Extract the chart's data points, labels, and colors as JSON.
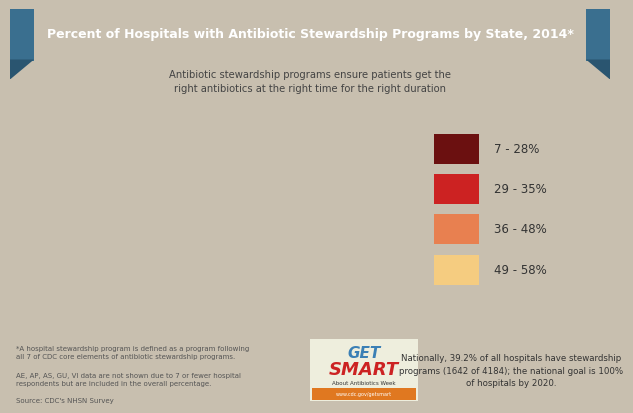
{
  "title": "Percent of Hospitals with Antibiotic Stewardship Programs by State, 2014*",
  "subtitle": "Antibiotic stewardship programs ensure patients get the\nright antibiotics at the right time for the right duration",
  "bg_color": "#c8bfaf",
  "title_bg_color": "#4a86a8",
  "title_ribbon_dark": "#3a6f8f",
  "title_ribbon_fold": "#2a5570",
  "title_text_color": "#ffffff",
  "legend_items": [
    {
      "label": "7 - 28%",
      "color": "#6b1010"
    },
    {
      "label": "29 - 35%",
      "color": "#cc2222"
    },
    {
      "label": "36 - 48%",
      "color": "#e88050"
    },
    {
      "label": "49 - 58%",
      "color": "#f5cc80"
    }
  ],
  "footnote1": "*A hospital stewardship program is defined as a program following\nall 7 of CDC core elements of antibiotic stewardship programs.",
  "footnote2": "AE, AP, AS, GU, VI data are not shown due to 7 or fewer hospital\nrespondents but are included in the overall percentage.",
  "footnote3": "Source: CDC's NHSN Survey",
  "stat_text": "Nationally, 39.2% of all hospitals have stewardship\nprograms (1642 of 4184); the national goal is 100%\nof hospitals by 2020.",
  "state_colors": {
    "AL": "#e88050",
    "AK": "#e88050",
    "AZ": "#e88050",
    "AR": "#6b1010",
    "CA": "#e88050",
    "CO": "#cc2222",
    "CT": "#f5cc80",
    "DE": "#cc2222",
    "FL": "#e88050",
    "GA": "#e88050",
    "HI": "#6b1010",
    "ID": "#f5cc80",
    "IL": "#6b1010",
    "IN": "#cc2222",
    "IA": "#6b1010",
    "KS": "#f5cc80",
    "KY": "#6b1010",
    "LA": "#e88050",
    "ME": "#cc2222",
    "MD": "#cc2222",
    "MA": "#f5cc80",
    "MI": "#6b1010",
    "MN": "#6b1010",
    "MS": "#6b1010",
    "MO": "#6b1010",
    "MT": "#e88050",
    "NE": "#f5cc80",
    "NV": "#cc2222",
    "NH": "#f5cc80",
    "NJ": "#cc2222",
    "NM": "#cc2222",
    "NY": "#6b1010",
    "NC": "#e88050",
    "ND": "#6b1010",
    "OH": "#cc2222",
    "OK": "#cc2222",
    "OR": "#cc2222",
    "PA": "#cc2222",
    "RI": "#f5cc80",
    "SC": "#e88050",
    "SD": "#6b1010",
    "TN": "#cc2222",
    "TX": "#e88050",
    "UT": "#e88050",
    "VT": "#f5cc80",
    "VA": "#6b1010",
    "WA": "#cc2222",
    "WV": "#6b1010",
    "WI": "#6b1010",
    "WY": "#e88050"
  }
}
